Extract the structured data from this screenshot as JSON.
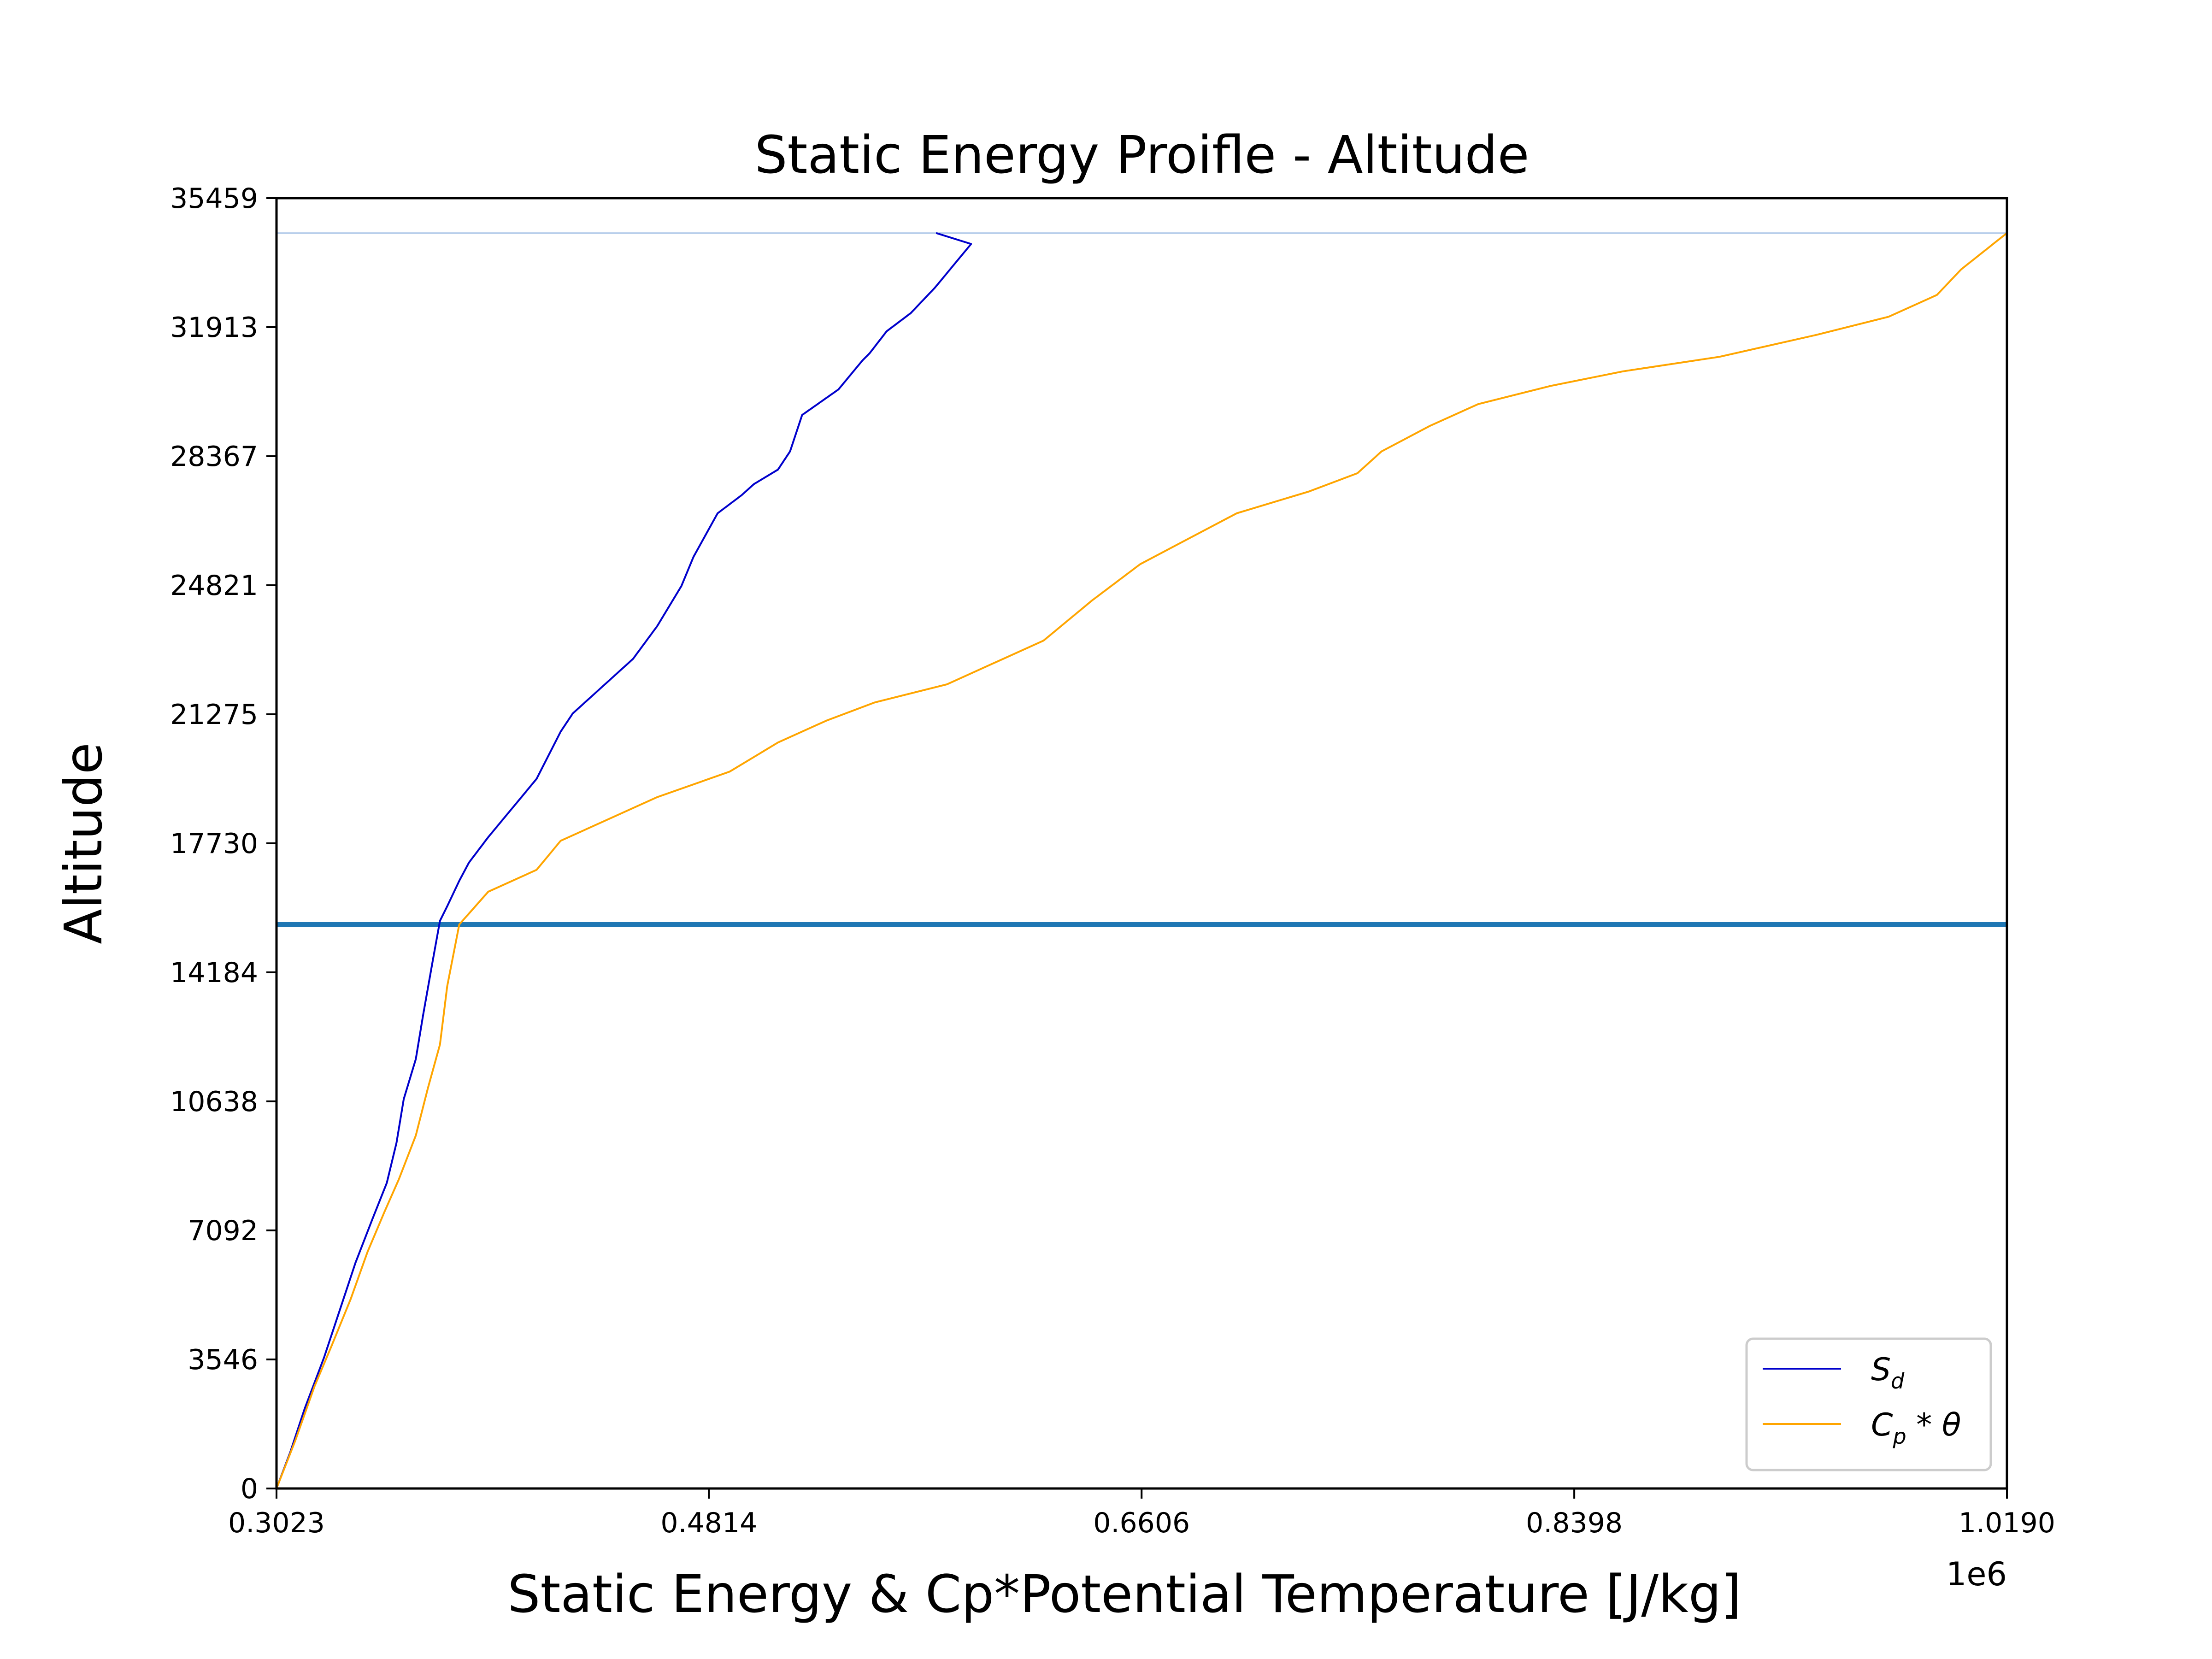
{
  "chart_data": {
    "type": "line",
    "title": "Static Energy Proifle - Altitude",
    "xlabel": "Static Energy & Cp*Potential Temperature [J/kg]",
    "ylabel": "Altitude",
    "x_offset_label": "1e6",
    "xlim": [
      0.3023,
      1.019
    ],
    "ylim": [
      0,
      35459
    ],
    "x_ticks": [
      0.3023,
      0.4814,
      0.6606,
      0.8398,
      1.019
    ],
    "x_tick_labels": [
      "0.3023",
      "0.4814",
      "0.6606",
      "0.8398",
      "1.0190"
    ],
    "y_ticks": [
      0,
      3546,
      7092,
      10638,
      14184,
      17730,
      21275,
      24821,
      28367,
      31913,
      35459
    ],
    "y_tick_labels": [
      "0",
      "3546",
      "7092",
      "10638",
      "14184",
      "17730",
      "21275",
      "24821",
      "28367",
      "31913",
      "35459"
    ],
    "grid": false,
    "legend_position": "lower-right",
    "reference_lines": [
      {
        "y": 15500,
        "color": "#1f77b4",
        "style": "thick"
      },
      {
        "y": 34500,
        "color": "#aec7e8",
        "style": "thin"
      }
    ],
    "series": [
      {
        "name": "S_d",
        "legend_main": "S",
        "legend_sub": "d",
        "color": "#0000cc",
        "x": [
          0.3023,
          0.308,
          0.314,
          0.322,
          0.33,
          0.335,
          0.342,
          0.348,
          0.352,
          0.355,
          0.36,
          0.363,
          0.367,
          0.37,
          0.373,
          0.378,
          0.382,
          0.39,
          0.4,
          0.41,
          0.42,
          0.425,
          0.435,
          0.45,
          0.46,
          0.47,
          0.475,
          0.48,
          0.485,
          0.495,
          0.5,
          0.51,
          0.515,
          0.52,
          0.535,
          0.545,
          0.548,
          0.555,
          0.565,
          0.575,
          0.585,
          0.59,
          0.5755
        ],
        "y": [
          0,
          1000,
          2200,
          3600,
          5200,
          6200,
          7400,
          8400,
          9500,
          10700,
          11800,
          13000,
          14500,
          15600,
          16000,
          16700,
          17200,
          17900,
          18700,
          19500,
          20800,
          21300,
          21900,
          22800,
          23700,
          24800,
          25600,
          26200,
          26800,
          27300,
          27600,
          28000,
          28500,
          29500,
          30200,
          31000,
          31200,
          31800,
          32300,
          33000,
          33800,
          34200,
          34500
        ]
      },
      {
        "name": "Cp*θ",
        "legend_main": "C",
        "legend_sub": "p",
        "legend_suffix": " * θ",
        "color": "#ffa500",
        "x": [
          0.3023,
          0.31,
          0.318,
          0.325,
          0.333,
          0.34,
          0.347,
          0.353,
          0.36,
          0.365,
          0.37,
          0.373,
          0.378,
          0.39,
          0.41,
          0.42,
          0.44,
          0.46,
          0.49,
          0.51,
          0.53,
          0.55,
          0.58,
          0.6,
          0.62,
          0.64,
          0.66,
          0.68,
          0.7,
          0.73,
          0.75,
          0.76,
          0.78,
          0.8,
          0.83,
          0.86,
          0.9,
          0.94,
          0.97,
          0.99,
          1.0,
          1.019
        ],
        "y": [
          0,
          1300,
          2800,
          3900,
          5200,
          6500,
          7600,
          8500,
          9700,
          11000,
          12200,
          13800,
          15500,
          16400,
          17000,
          17800,
          18400,
          19000,
          19700,
          20500,
          21100,
          21600,
          22100,
          22700,
          23300,
          24400,
          25400,
          26100,
          26800,
          27400,
          27900,
          28500,
          29200,
          29800,
          30300,
          30700,
          31100,
          31700,
          32200,
          32800,
          33500,
          34500
        ]
      }
    ]
  }
}
